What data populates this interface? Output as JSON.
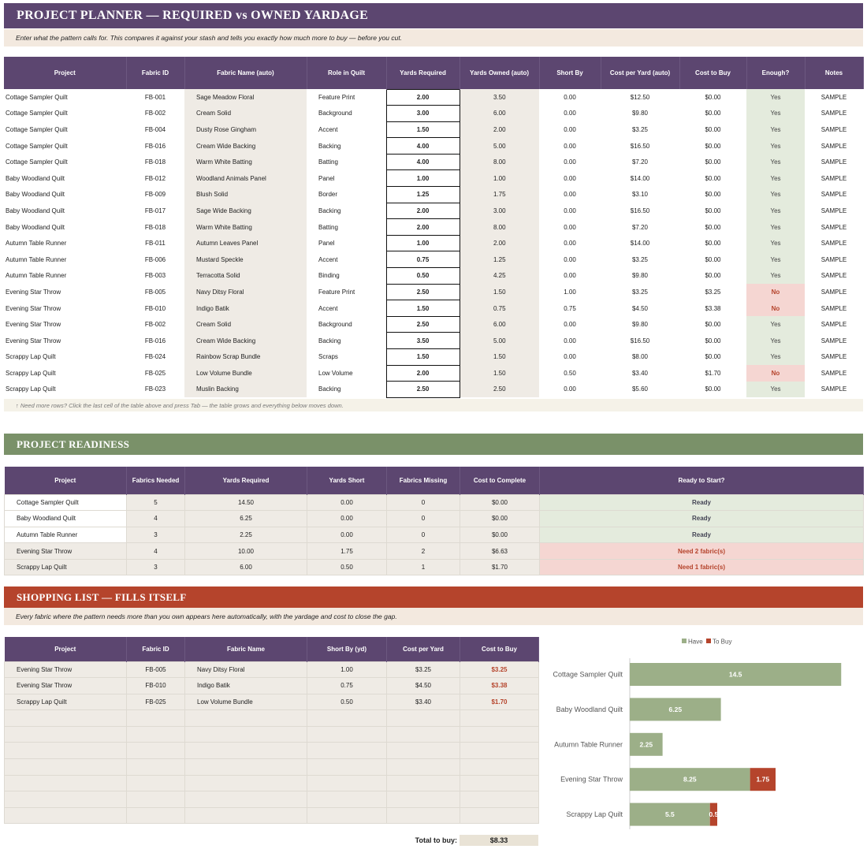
{
  "planner": {
    "title": "PROJECT PLANNER — REQUIRED vs OWNED YARDAGE",
    "subtitle": "Enter what the pattern calls for. This compares it against your stash and tells you exactly how much more to buy — before you cut.",
    "columns": [
      "Project",
      "Fabric ID",
      "Fabric Name (auto)",
      "Role in Quilt",
      "Yards Required",
      "Yards Owned (auto)",
      "Short By",
      "Cost per Yard (auto)",
      "Cost to Buy",
      "Enough?",
      "Notes"
    ],
    "rows": [
      [
        "Cottage Sampler Quilt",
        "FB-001",
        "Sage Meadow Floral",
        "Feature Print",
        "2.00",
        "3.50",
        "0.00",
        "$12.50",
        "$0.00",
        "Yes",
        "SAMPLE"
      ],
      [
        "Cottage Sampler Quilt",
        "FB-002",
        "Cream Solid",
        "Background",
        "3.00",
        "6.00",
        "0.00",
        "$9.80",
        "$0.00",
        "Yes",
        "SAMPLE"
      ],
      [
        "Cottage Sampler Quilt",
        "FB-004",
        "Dusty Rose Gingham",
        "Accent",
        "1.50",
        "2.00",
        "0.00",
        "$3.25",
        "$0.00",
        "Yes",
        "SAMPLE"
      ],
      [
        "Cottage Sampler Quilt",
        "FB-016",
        "Cream Wide Backing",
        "Backing",
        "4.00",
        "5.00",
        "0.00",
        "$16.50",
        "$0.00",
        "Yes",
        "SAMPLE"
      ],
      [
        "Cottage Sampler Quilt",
        "FB-018",
        "Warm White Batting",
        "Batting",
        "4.00",
        "8.00",
        "0.00",
        "$7.20",
        "$0.00",
        "Yes",
        "SAMPLE"
      ],
      [
        "Baby Woodland Quilt",
        "FB-012",
        "Woodland Animals Panel",
        "Panel",
        "1.00",
        "1.00",
        "0.00",
        "$14.00",
        "$0.00",
        "Yes",
        "SAMPLE"
      ],
      [
        "Baby Woodland Quilt",
        "FB-009",
        "Blush Solid",
        "Border",
        "1.25",
        "1.75",
        "0.00",
        "$3.10",
        "$0.00",
        "Yes",
        "SAMPLE"
      ],
      [
        "Baby Woodland Quilt",
        "FB-017",
        "Sage Wide Backing",
        "Backing",
        "2.00",
        "3.00",
        "0.00",
        "$16.50",
        "$0.00",
        "Yes",
        "SAMPLE"
      ],
      [
        "Baby Woodland Quilt",
        "FB-018",
        "Warm White Batting",
        "Batting",
        "2.00",
        "8.00",
        "0.00",
        "$7.20",
        "$0.00",
        "Yes",
        "SAMPLE"
      ],
      [
        "Autumn Table Runner",
        "FB-011",
        "Autumn Leaves Panel",
        "Panel",
        "1.00",
        "2.00",
        "0.00",
        "$14.00",
        "$0.00",
        "Yes",
        "SAMPLE"
      ],
      [
        "Autumn Table Runner",
        "FB-006",
        "Mustard Speckle",
        "Accent",
        "0.75",
        "1.25",
        "0.00",
        "$3.25",
        "$0.00",
        "Yes",
        "SAMPLE"
      ],
      [
        "Autumn Table Runner",
        "FB-003",
        "Terracotta Solid",
        "Binding",
        "0.50",
        "4.25",
        "0.00",
        "$9.80",
        "$0.00",
        "Yes",
        "SAMPLE"
      ],
      [
        "Evening Star Throw",
        "FB-005",
        "Navy Ditsy Floral",
        "Feature Print",
        "2.50",
        "1.50",
        "1.00",
        "$3.25",
        "$3.25",
        "No",
        "SAMPLE"
      ],
      [
        "Evening Star Throw",
        "FB-010",
        "Indigo Batik",
        "Accent",
        "1.50",
        "0.75",
        "0.75",
        "$4.50",
        "$3.38",
        "No",
        "SAMPLE"
      ],
      [
        "Evening Star Throw",
        "FB-002",
        "Cream Solid",
        "Background",
        "2.50",
        "6.00",
        "0.00",
        "$9.80",
        "$0.00",
        "Yes",
        "SAMPLE"
      ],
      [
        "Evening Star Throw",
        "FB-016",
        "Cream Wide Backing",
        "Backing",
        "3.50",
        "5.00",
        "0.00",
        "$16.50",
        "$0.00",
        "Yes",
        "SAMPLE"
      ],
      [
        "Scrappy Lap Quilt",
        "FB-024",
        "Rainbow Scrap Bundle",
        "Scraps",
        "1.50",
        "1.50",
        "0.00",
        "$8.00",
        "$0.00",
        "Yes",
        "SAMPLE"
      ],
      [
        "Scrappy Lap Quilt",
        "FB-025",
        "Low Volume Bundle",
        "Low Volume",
        "2.00",
        "1.50",
        "0.50",
        "$3.40",
        "$1.70",
        "No",
        "SAMPLE"
      ],
      [
        "Scrappy Lap Quilt",
        "FB-023",
        "Muslin Backing",
        "Backing",
        "2.50",
        "2.50",
        "0.00",
        "$5.60",
        "$0.00",
        "Yes",
        "SAMPLE"
      ]
    ],
    "note": "↑ Need more rows? Click the last cell of the table above and press Tab — the table grows and everything below moves down."
  },
  "readiness": {
    "title": "PROJECT READINESS",
    "columns": [
      "Project",
      "Fabrics Needed",
      "Yards Required",
      "Yards Short",
      "Fabrics Missing",
      "Cost to Complete",
      "Ready to Start?"
    ],
    "rows": [
      [
        "Cottage Sampler Quilt",
        "5",
        "14.50",
        "0.00",
        "0",
        "$0.00",
        "Ready"
      ],
      [
        "Baby Woodland Quilt",
        "4",
        "6.25",
        "0.00",
        "0",
        "$0.00",
        "Ready"
      ],
      [
        "Autumn Table Runner",
        "3",
        "2.25",
        "0.00",
        "0",
        "$0.00",
        "Ready"
      ],
      [
        "Evening Star Throw",
        "4",
        "10.00",
        "1.75",
        "2",
        "$6.63",
        "Need 2 fabric(s)"
      ],
      [
        "Scrappy Lap Quilt",
        "3",
        "6.00",
        "0.50",
        "1",
        "$1.70",
        "Need 1 fabric(s)"
      ]
    ]
  },
  "shopping": {
    "title": "SHOPPING LIST — FILLS ITSELF",
    "subtitle": "Every fabric where the pattern needs more than you own appears here automatically, with the yardage and cost to close the gap.",
    "columns": [
      "Project",
      "Fabric ID",
      "Fabric Name",
      "Short By (yd)",
      "Cost per Yard",
      "Cost to Buy"
    ],
    "rows": [
      [
        "Evening Star Throw",
        "FB-005",
        "Navy Ditsy Floral",
        "1.00",
        "$3.25",
        "$3.25"
      ],
      [
        "Evening Star Throw",
        "FB-010",
        "Indigo Batik",
        "0.75",
        "$4.50",
        "$3.38"
      ],
      [
        "Scrappy Lap Quilt",
        "FB-025",
        "Low Volume Bundle",
        "0.50",
        "$3.40",
        "$1.70"
      ]
    ],
    "empty_rows": 7,
    "total_label": "Total to buy:",
    "total_value": "$8.33"
  },
  "colors": {
    "purple": "#5c4670",
    "green": "#7a9169",
    "rust": "#b5442c",
    "have_bar": "#9caf88",
    "buy_bar": "#b5442c"
  },
  "chart_data": {
    "type": "bar",
    "orientation": "horizontal",
    "stacked": true,
    "categories": [
      "Cottage Sampler Quilt",
      "Baby Woodland Quilt",
      "Autumn Table Runner",
      "Evening Star Throw",
      "Scrappy Lap Quilt"
    ],
    "series": [
      {
        "name": "Have",
        "values": [
          14.5,
          6.25,
          2.25,
          8.25,
          5.5
        ],
        "labels": [
          "14.5",
          "6.25",
          "2.25",
          "8.25",
          "5.5"
        ],
        "color": "#9caf88"
      },
      {
        "name": "To Buy",
        "values": [
          0,
          0,
          0,
          1.75,
          0.5
        ],
        "labels": [
          "",
          "",
          "",
          "1.75",
          "0.5"
        ],
        "color": "#b5442c"
      }
    ],
    "xlim": [
      0,
      16
    ],
    "legend": "top",
    "grid": false
  }
}
